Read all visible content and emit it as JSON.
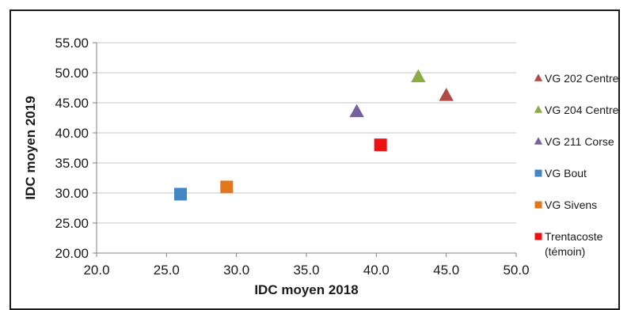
{
  "chart_data": {
    "type": "scatter",
    "xlabel": "IDC moyen 2018",
    "ylabel": "IDC moyen 2019",
    "xlim": [
      20.0,
      50.0
    ],
    "ylim": [
      20.0,
      55.0
    ],
    "x_ticks": [
      "20.0",
      "25.0",
      "30.0",
      "35.0",
      "40.0",
      "45.0",
      "50.0"
    ],
    "y_ticks": [
      "20.00",
      "25.00",
      "30.00",
      "35.00",
      "40.00",
      "45.00",
      "50.00",
      "55.00"
    ],
    "grid": "horizontal",
    "legend_position": "right",
    "series": [
      {
        "name": "VG 202 Centre",
        "marker": "triangle",
        "color": "#b04a46",
        "points": [
          [
            45.0,
            46.2
          ]
        ]
      },
      {
        "name": "VG 204 Centre",
        "marker": "triangle",
        "color": "#8aab45",
        "points": [
          [
            43.0,
            49.3
          ]
        ]
      },
      {
        "name": "VG 211 Corse",
        "marker": "triangle",
        "color": "#7660a0",
        "points": [
          [
            38.6,
            43.5
          ]
        ]
      },
      {
        "name": "VG Bout",
        "marker": "square",
        "color": "#4286c4",
        "points": [
          [
            26.0,
            29.8
          ]
        ]
      },
      {
        "name": "VG Sivens",
        "marker": "square",
        "color": "#e2771e",
        "points": [
          [
            29.3,
            31.0
          ]
        ]
      },
      {
        "name": "Trentacoste\n(témoin)",
        "marker": "square",
        "color": "#ee1111",
        "points": [
          [
            40.3,
            38.0
          ]
        ]
      }
    ]
  }
}
